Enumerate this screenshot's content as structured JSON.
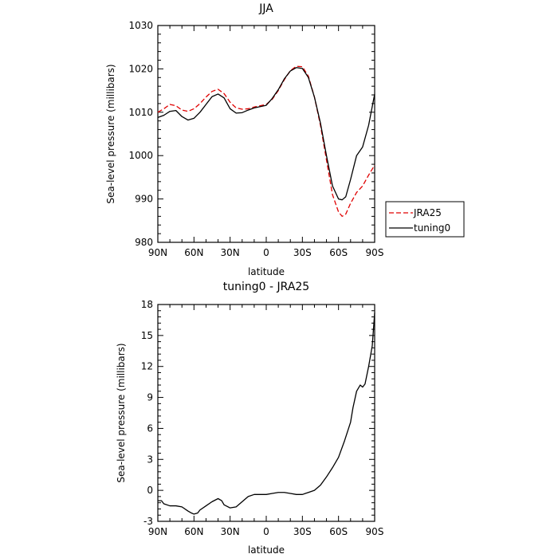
{
  "chart_data": [
    {
      "type": "line",
      "title": "JJA",
      "xlabel": "latitude",
      "ylabel": "Sea-level pressure (millibars)",
      "xlim": [
        -90,
        90
      ],
      "ylim": [
        980,
        1030
      ],
      "x_ticks": [
        {
          "value": -90,
          "label": "90N"
        },
        {
          "value": -60,
          "label": "60N"
        },
        {
          "value": -30,
          "label": "30N"
        },
        {
          "value": 0,
          "label": "0"
        },
        {
          "value": 30,
          "label": "30S"
        },
        {
          "value": 60,
          "label": "60S"
        },
        {
          "value": 90,
          "label": "90S"
        }
      ],
      "y_ticks": [
        980,
        990,
        1000,
        1010,
        1020,
        1030
      ],
      "legend_placement": "outside-right",
      "series": [
        {
          "name": "JRA25",
          "color": "#e00000",
          "dash": "dashed",
          "x": [
            -90,
            -85,
            -80,
            -75,
            -70,
            -65,
            -60,
            -55,
            -50,
            -45,
            -40,
            -35,
            -30,
            -25,
            -20,
            -15,
            -10,
            -5,
            0,
            5,
            10,
            15,
            20,
            25,
            30,
            35,
            40,
            45,
            50,
            55,
            60,
            63,
            66,
            70,
            75,
            80,
            85,
            90
          ],
          "y": [
            1010.0,
            1010.8,
            1011.8,
            1011.5,
            1010.5,
            1010.2,
            1010.8,
            1012.0,
            1013.5,
            1014.8,
            1015.3,
            1014.3,
            1012.3,
            1011.0,
            1010.7,
            1010.8,
            1011.2,
            1011.5,
            1011.8,
            1013.0,
            1015.0,
            1017.5,
            1019.6,
            1020.6,
            1020.5,
            1018.3,
            1013.5,
            1007.0,
            999.0,
            991.0,
            987.0,
            986.0,
            986.5,
            989.0,
            991.5,
            993.0,
            995.5,
            997.8
          ]
        },
        {
          "name": "tuning0",
          "color": "#000000",
          "dash": "solid",
          "x": [
            -90,
            -85,
            -80,
            -75,
            -70,
            -65,
            -60,
            -55,
            -50,
            -45,
            -40,
            -35,
            -30,
            -25,
            -20,
            -15,
            -10,
            -5,
            0,
            5,
            10,
            15,
            20,
            25,
            30,
            35,
            40,
            45,
            50,
            55,
            60,
            63,
            66,
            70,
            75,
            80,
            85,
            90
          ],
          "y": [
            1008.8,
            1009.3,
            1010.2,
            1010.4,
            1009.0,
            1008.2,
            1008.6,
            1010.0,
            1011.8,
            1013.6,
            1014.2,
            1013.3,
            1010.8,
            1009.8,
            1009.9,
            1010.5,
            1011.0,
            1011.3,
            1011.6,
            1013.2,
            1015.2,
            1017.7,
            1019.5,
            1020.3,
            1020.1,
            1018.0,
            1013.5,
            1007.5,
            1000.0,
            993.0,
            990.0,
            989.8,
            990.5,
            994.5,
            1000.0,
            1002.0,
            1007.0,
            1014.2
          ]
        }
      ]
    },
    {
      "type": "line",
      "title": "tuning0 - JRA25",
      "xlabel": "latitude",
      "ylabel": "Sea-level pressure (millibars)",
      "xlim": [
        -90,
        90
      ],
      "ylim": [
        -3,
        18
      ],
      "x_ticks": [
        {
          "value": -90,
          "label": "90N"
        },
        {
          "value": -60,
          "label": "60N"
        },
        {
          "value": -30,
          "label": "30N"
        },
        {
          "value": 0,
          "label": "0"
        },
        {
          "value": 30,
          "label": "30S"
        },
        {
          "value": 60,
          "label": "60S"
        },
        {
          "value": 90,
          "label": "90S"
        }
      ],
      "y_ticks": [
        -3,
        0,
        3,
        6,
        9,
        12,
        15,
        18
      ],
      "series": [
        {
          "color": "#000000",
          "dash": "solid",
          "x": [
            -90,
            -87,
            -85,
            -80,
            -75,
            -70,
            -65,
            -62,
            -60,
            -57,
            -55,
            -50,
            -45,
            -40,
            -37,
            -35,
            -30,
            -25,
            -20,
            -15,
            -10,
            -5,
            0,
            5,
            10,
            15,
            20,
            25,
            30,
            35,
            40,
            45,
            50,
            55,
            60,
            65,
            70,
            72,
            75,
            78,
            80,
            82,
            85,
            88,
            90
          ],
          "y": [
            -1.0,
            -1.0,
            -1.3,
            -1.5,
            -1.5,
            -1.6,
            -2.0,
            -2.2,
            -2.3,
            -2.2,
            -1.9,
            -1.5,
            -1.1,
            -0.8,
            -1.0,
            -1.4,
            -1.7,
            -1.6,
            -1.1,
            -0.6,
            -0.4,
            -0.4,
            -0.4,
            -0.3,
            -0.2,
            -0.2,
            -0.3,
            -0.4,
            -0.4,
            -0.2,
            0.0,
            0.5,
            1.3,
            2.2,
            3.2,
            4.8,
            6.6,
            8.0,
            9.6,
            10.2,
            10.0,
            10.3,
            12.0,
            14.0,
            17.2
          ]
        }
      ]
    }
  ]
}
